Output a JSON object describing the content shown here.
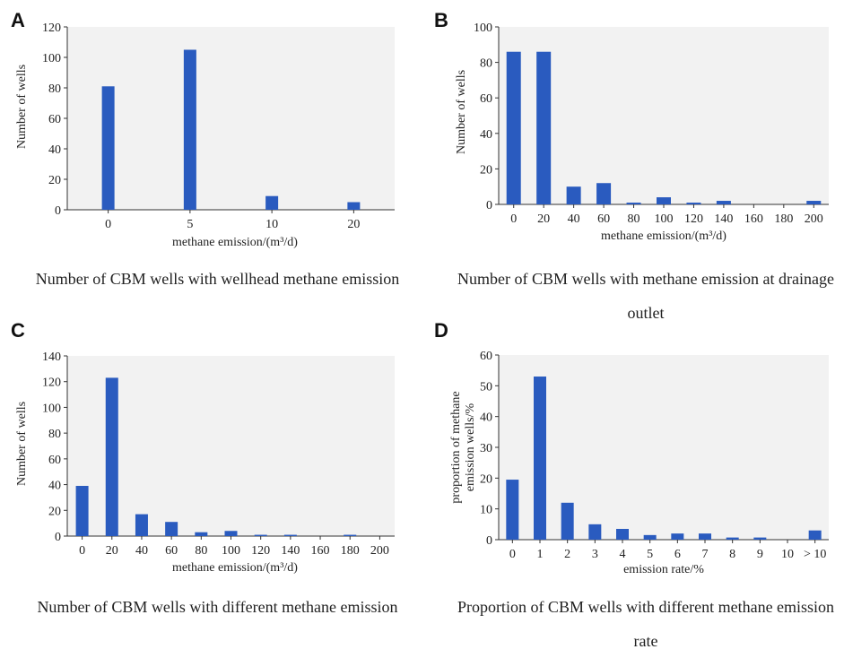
{
  "panels": [
    {
      "letter": "A",
      "caption": "Number of CBM wells with wellhead methane emission",
      "chart_data": {
        "type": "bar",
        "categories": [
          "0",
          "5",
          "10",
          "20"
        ],
        "values": [
          81,
          105,
          9,
          5
        ],
        "ylim": [
          0,
          120
        ],
        "yticks": [
          0,
          20,
          40,
          60,
          80,
          100,
          120
        ],
        "xlabel": "methane emission/(m³/d)",
        "ylabel": "Number of wells"
      }
    },
    {
      "letter": "B",
      "caption": "Number of CBM wells with methane emission at drainage outlet",
      "chart_data": {
        "type": "bar",
        "categories": [
          "0",
          "20",
          "40",
          "60",
          "80",
          "100",
          "120",
          "140",
          "160",
          "180",
          "200"
        ],
        "values": [
          86,
          86,
          10,
          12,
          1,
          4,
          1,
          2,
          0,
          0,
          2
        ],
        "ylim": [
          0,
          100
        ],
        "yticks": [
          0,
          20,
          40,
          60,
          80,
          100
        ],
        "xlabel": "methane emission/(m³/d)",
        "ylabel": "Number of wells"
      }
    },
    {
      "letter": "C",
      "caption": "Number of CBM wells with different methane emission",
      "chart_data": {
        "type": "bar",
        "categories": [
          "0",
          "20",
          "40",
          "60",
          "80",
          "100",
          "120",
          "140",
          "160",
          "180",
          "200"
        ],
        "values": [
          39,
          123,
          17,
          11,
          3,
          4,
          1,
          1,
          0,
          1,
          0
        ],
        "ylim": [
          0,
          140
        ],
        "yticks": [
          0,
          20,
          40,
          60,
          80,
          100,
          120,
          140
        ],
        "xlabel": "methane emission/(m³/d)",
        "ylabel": "Number of wells"
      }
    },
    {
      "letter": "D",
      "caption": "Proportion of CBM wells with different methane emission rate",
      "chart_data": {
        "type": "bar",
        "categories": [
          "0",
          "1",
          "2",
          "3",
          "4",
          "5",
          "6",
          "7",
          "8",
          "9",
          "10",
          "> 10"
        ],
        "values": [
          19.5,
          53,
          12,
          5,
          3.5,
          1.5,
          2,
          2,
          0.7,
          0.7,
          0,
          3
        ],
        "ylim": [
          0,
          60
        ],
        "yticks": [
          0,
          10,
          20,
          30,
          40,
          50,
          60
        ],
        "xlabel": "emission rate/%",
        "ylabel": "proportion of methane emission wells/%"
      }
    }
  ]
}
